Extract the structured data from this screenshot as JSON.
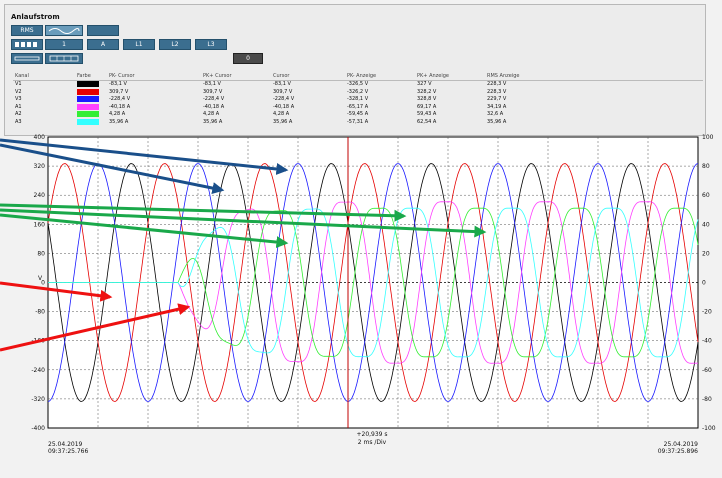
{
  "window": {
    "title": "Anlaufstrom",
    "toolbar_row1": [
      "RMS",
      "",
      "",
      ""
    ],
    "toolbar_row2": [
      "",
      "1",
      "A",
      "L1",
      "L2",
      "L3"
    ],
    "toolbar_row3": [
      "",
      "",
      "0"
    ]
  },
  "table": {
    "headers": [
      "Kanal",
      "Farbe",
      "PK- Cursor",
      "PK+ Cursor",
      "Cursor",
      "PK- Anzeige",
      "PK+ Anzeige",
      "RMS Anzeige"
    ],
    "rows": [
      {
        "kanal": "V1",
        "color": "#000000",
        "pk_minus_cursor": "-83,1 V",
        "pk_plus_cursor": "-83,1 V",
        "cursor": "-83,1 V",
        "pk_minus_anzeige": "-326,5 V",
        "pk_plus_anzeige": "327 V",
        "rms_anzeige": "228,3 V"
      },
      {
        "kanal": "V2",
        "color": "#e60000",
        "pk_minus_cursor": "309,7 V",
        "pk_plus_cursor": "309,7 V",
        "cursor": "309,7 V",
        "pk_minus_anzeige": "-326,2 V",
        "pk_plus_anzeige": "328,2 V",
        "rms_anzeige": "228,3 V"
      },
      {
        "kanal": "V3",
        "color": "#1a1aff",
        "pk_minus_cursor": "-228,4 V",
        "pk_plus_cursor": "-228,4 V",
        "cursor": "-228,4 V",
        "pk_minus_anzeige": "-328,1 V",
        "pk_plus_anzeige": "328,8 V",
        "rms_anzeige": "229,7 V"
      },
      {
        "kanal": "A1",
        "color": "#ff40ff",
        "pk_minus_cursor": "-40,18 A",
        "pk_plus_cursor": "-40,18 A",
        "cursor": "-40,18 A",
        "pk_minus_anzeige": "-65,17 A",
        "pk_plus_anzeige": "69,17 A",
        "rms_anzeige": "34,19 A"
      },
      {
        "kanal": "A2",
        "color": "#33ee33",
        "pk_minus_cursor": "4,28 A",
        "pk_plus_cursor": "4,28 A",
        "cursor": "4,28 A",
        "pk_minus_anzeige": "-59,45 A",
        "pk_plus_anzeige": "59,43 A",
        "rms_anzeige": "32,6 A"
      },
      {
        "kanal": "A3",
        "color": "#33ffff",
        "pk_minus_cursor": "35,96 A",
        "pk_plus_cursor": "35,96 A",
        "cursor": "35,96 A",
        "pk_minus_anzeige": "-57,31 A",
        "pk_plus_anzeige": "62,54 A",
        "rms_anzeige": "35,96 A"
      }
    ]
  },
  "chart_data": {
    "type": "line",
    "ylabel_left": "V",
    "ylabel_right": "",
    "ylim_left": [
      -400,
      400
    ],
    "ylim_right": [
      -100,
      100
    ],
    "yticks_left": [
      400,
      320,
      240,
      160,
      80,
      0,
      -80,
      -160,
      -240,
      -320,
      -400
    ],
    "yticks_right": [
      100,
      80,
      60,
      40,
      20,
      0,
      -20,
      -40,
      -60,
      -80,
      -100
    ],
    "x_start_label": {
      "date": "25.04.2019",
      "time": "09:37:25.766"
    },
    "x_end_label": {
      "date": "25.04.2019",
      "time": "09:37:25.896"
    },
    "cursor_label": "+20,939 s",
    "division_label": "2 ms /Div",
    "grid": true,
    "x_range_ms": [
      0,
      130
    ],
    "cursor_ms": 60,
    "current_start_ms": 26,
    "voltage_amplitude": 327,
    "frequency_hz": 50,
    "series": [
      {
        "channel": "V1",
        "axis": "left",
        "color": "#000000",
        "amplitude": 327,
        "phase_deg": 150
      },
      {
        "channel": "V2",
        "axis": "left",
        "color": "#e60000",
        "amplitude": 327,
        "phase_deg": 30
      },
      {
        "channel": "V3",
        "axis": "left",
        "color": "#1a1aff",
        "amplitude": 327,
        "phase_deg": -90
      },
      {
        "channel": "A1",
        "axis": "right",
        "color": "#ff40ff",
        "amplitude": 63,
        "phase_deg": 100
      },
      {
        "channel": "A2",
        "axis": "right",
        "color": "#33ee33",
        "amplitude": 58,
        "phase_deg": -20
      },
      {
        "channel": "A3",
        "axis": "right",
        "color": "#33ffff",
        "amplitude": 58,
        "phase_deg": -140
      }
    ]
  },
  "annotations": [
    {
      "color": "#1a4f8a",
      "role": "voltage-peak-arrow-1"
    },
    {
      "color": "#1a4f8a",
      "role": "voltage-peak-arrow-2"
    },
    {
      "color": "#1aa84a",
      "role": "current-arrow-1"
    },
    {
      "color": "#1aa84a",
      "role": "current-arrow-2"
    },
    {
      "color": "#1aa84a",
      "role": "current-arrow-3"
    },
    {
      "color": "#ee1111",
      "role": "zero-arrow-1"
    },
    {
      "color": "#ee1111",
      "role": "zero-arrow-2"
    }
  ]
}
